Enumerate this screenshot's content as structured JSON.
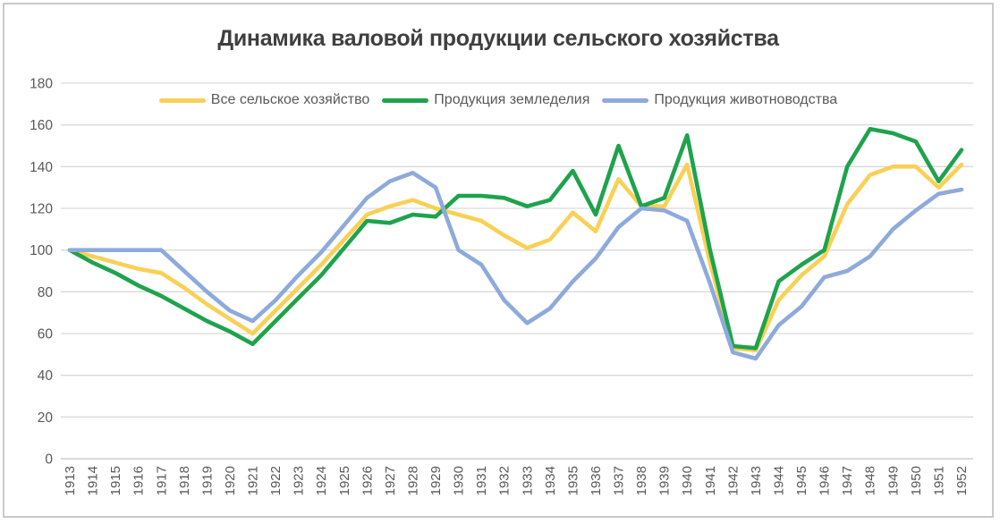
{
  "title": "Динамика валовой продукции сельского хозяйства",
  "axis": {
    "y_ticks": [
      0,
      20,
      40,
      60,
      80,
      100,
      120,
      140,
      160,
      180
    ],
    "x_first_year": "1913",
    "x_last_year": "1952"
  },
  "colors": {
    "background": "#ffffff",
    "frame_border": "#c9c9c9",
    "gridline": "#d9d9d9",
    "axis_line": "#c3c3c3",
    "axis_label": "#595959",
    "title_text": "#3f3f3f",
    "series_all": "#f9d056",
    "series_crops": "#1ea34c",
    "series_livestock": "#8eaadb"
  },
  "chart_data": {
    "type": "line",
    "title": "Динамика валовой продукции сельского хозяйства",
    "x": [
      1913,
      1914,
      1915,
      1916,
      1917,
      1918,
      1919,
      1920,
      1921,
      1922,
      1923,
      1924,
      1925,
      1926,
      1927,
      1928,
      1929,
      1930,
      1931,
      1932,
      1933,
      1934,
      1935,
      1936,
      1937,
      1938,
      1939,
      1940,
      1941,
      1942,
      1943,
      1944,
      1945,
      1946,
      1947,
      1948,
      1949,
      1950,
      1951,
      1952
    ],
    "series": [
      {
        "name": "Все сельское хозяйство",
        "color": "#f9d056",
        "values": [
          100,
          97,
          94,
          91,
          89,
          82,
          74,
          67,
          60,
          71,
          82,
          93,
          105,
          117,
          121,
          124,
          120,
          117,
          114,
          107,
          101,
          105,
          118,
          109,
          134,
          121,
          121,
          141,
          94,
          53,
          52,
          76,
          88,
          97,
          122,
          136,
          140,
          140,
          130,
          141
        ]
      },
      {
        "name": "Продукция земледелия",
        "color": "#1ea34c",
        "values": [
          100,
          94,
          89,
          83,
          78,
          72,
          66,
          61,
          55,
          66,
          77,
          88,
          101,
          114,
          113,
          117,
          116,
          126,
          126,
          125,
          121,
          124,
          138,
          117,
          150,
          121,
          125,
          155,
          100,
          54,
          53,
          85,
          93,
          100,
          140,
          158,
          156,
          152,
          133,
          148
        ]
      },
      {
        "name": "Продукция животноводства",
        "color": "#8eaadb",
        "values": [
          100,
          100,
          100,
          100,
          100,
          90,
          80,
          71,
          66,
          76,
          88,
          99,
          112,
          125,
          133,
          137,
          130,
          100,
          93,
          76,
          65,
          72,
          85,
          96,
          111,
          120,
          119,
          114,
          84,
          51,
          48,
          64,
          73,
          87,
          90,
          97,
          110,
          119,
          127,
          129
        ]
      }
    ],
    "ylim": [
      0,
      180
    ],
    "ytick_step": 20,
    "xlabel": "",
    "ylabel": "",
    "grid": true,
    "legend_position": "top",
    "x_tick_rotation": -90
  }
}
